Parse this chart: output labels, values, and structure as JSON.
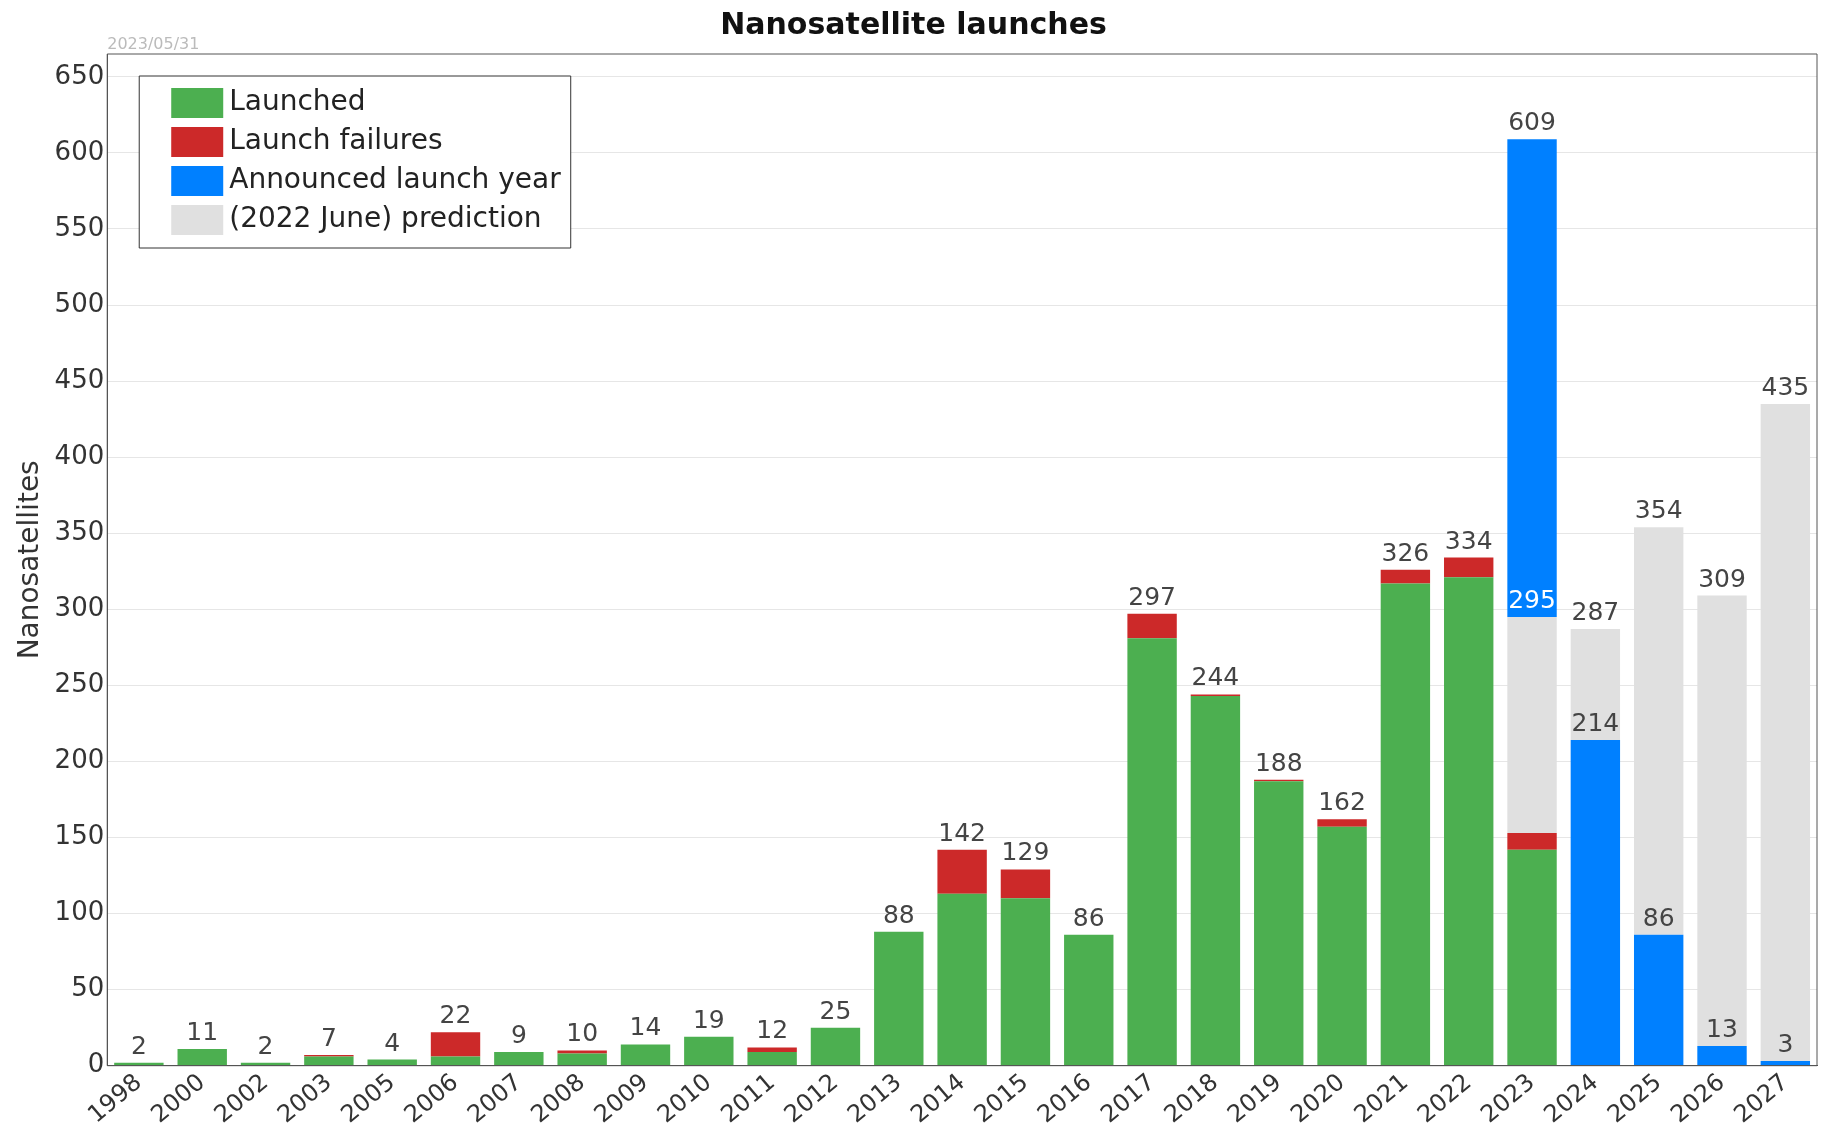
{
  "chart_data": {
    "type": "bar",
    "title": "Nanosatellite launches",
    "ylabel": "Nanosatellites",
    "categories": [
      "1998",
      "2000",
      "2002",
      "2003",
      "2005",
      "2006",
      "2007",
      "2008",
      "2009",
      "2010",
      "2011",
      "2012",
      "2013",
      "2014",
      "2015",
      "2016",
      "2017",
      "2018",
      "2019",
      "2020",
      "2021",
      "2022",
      "2023",
      "2024",
      "2025",
      "2026",
      "2027"
    ],
    "stacked": true,
    "series": [
      {
        "name": "Launched",
        "color": "#4caf50",
        "values": [
          2,
          11,
          2,
          6,
          4,
          6,
          9,
          8,
          14,
          19,
          9,
          25,
          88,
          113,
          110,
          86,
          281,
          243,
          187,
          157,
          317,
          321,
          142,
          null,
          null,
          null,
          null
        ]
      },
      {
        "name": "Launch failures",
        "color": "#cc2929",
        "values": [
          null,
          null,
          null,
          1,
          null,
          16,
          null,
          2,
          null,
          null,
          3,
          null,
          null,
          29,
          19,
          null,
          16,
          1,
          1,
          5,
          9,
          13,
          11,
          null,
          null,
          null,
          null
        ]
      },
      {
        "name": "Announced launch year",
        "color": "#0080ff",
        "values": [
          null,
          null,
          null,
          null,
          null,
          null,
          null,
          null,
          null,
          null,
          null,
          null,
          null,
          null,
          null,
          null,
          null,
          null,
          null,
          null,
          null,
          null,
          null,
          214,
          86,
          13,
          3
        ],
        "value_labels": [
          null,
          null,
          null,
          null,
          null,
          null,
          null,
          null,
          null,
          null,
          null,
          null,
          null,
          null,
          null,
          null,
          null,
          null,
          null,
          null,
          null,
          null,
          null,
          "214",
          "86",
          "13",
          "3"
        ]
      },
      {
        "name": "(2022 June) prediction",
        "color": "#e0e0e0",
        "values": [
          null,
          null,
          null,
          null,
          null,
          null,
          null,
          null,
          null,
          null,
          null,
          null,
          null,
          null,
          null,
          null,
          null,
          null,
          null,
          null,
          null,
          null,
          142,
          73,
          268,
          296,
          432
        ]
      },
      {
        "color": "#0080ff",
        "values": [
          null,
          null,
          null,
          null,
          null,
          null,
          null,
          null,
          null,
          null,
          null,
          null,
          null,
          null,
          null,
          null,
          null,
          null,
          null,
          null,
          null,
          null,
          314,
          null,
          null,
          null,
          null
        ]
      }
    ],
    "totals": [
      "2",
      "11",
      "2",
      "7",
      "4",
      "22",
      "9",
      "10",
      "14",
      "19",
      "12",
      "25",
      "88",
      "142",
      "129",
      "86",
      "297",
      "244",
      "188",
      "162",
      "326",
      "334",
      "609",
      "287",
      "354",
      "309",
      "435"
    ],
    "annotations": [
      "2023/05/31",
      {
        "text": "295",
        "x": "2023",
        "y": 295
      }
    ],
    "ylim": [
      0,
      665
    ],
    "yticks": [
      0,
      50,
      100,
      150,
      200,
      250,
      300,
      350,
      400,
      450,
      500,
      550,
      600,
      650
    ],
    "grid": "y",
    "legend": "top left"
  }
}
